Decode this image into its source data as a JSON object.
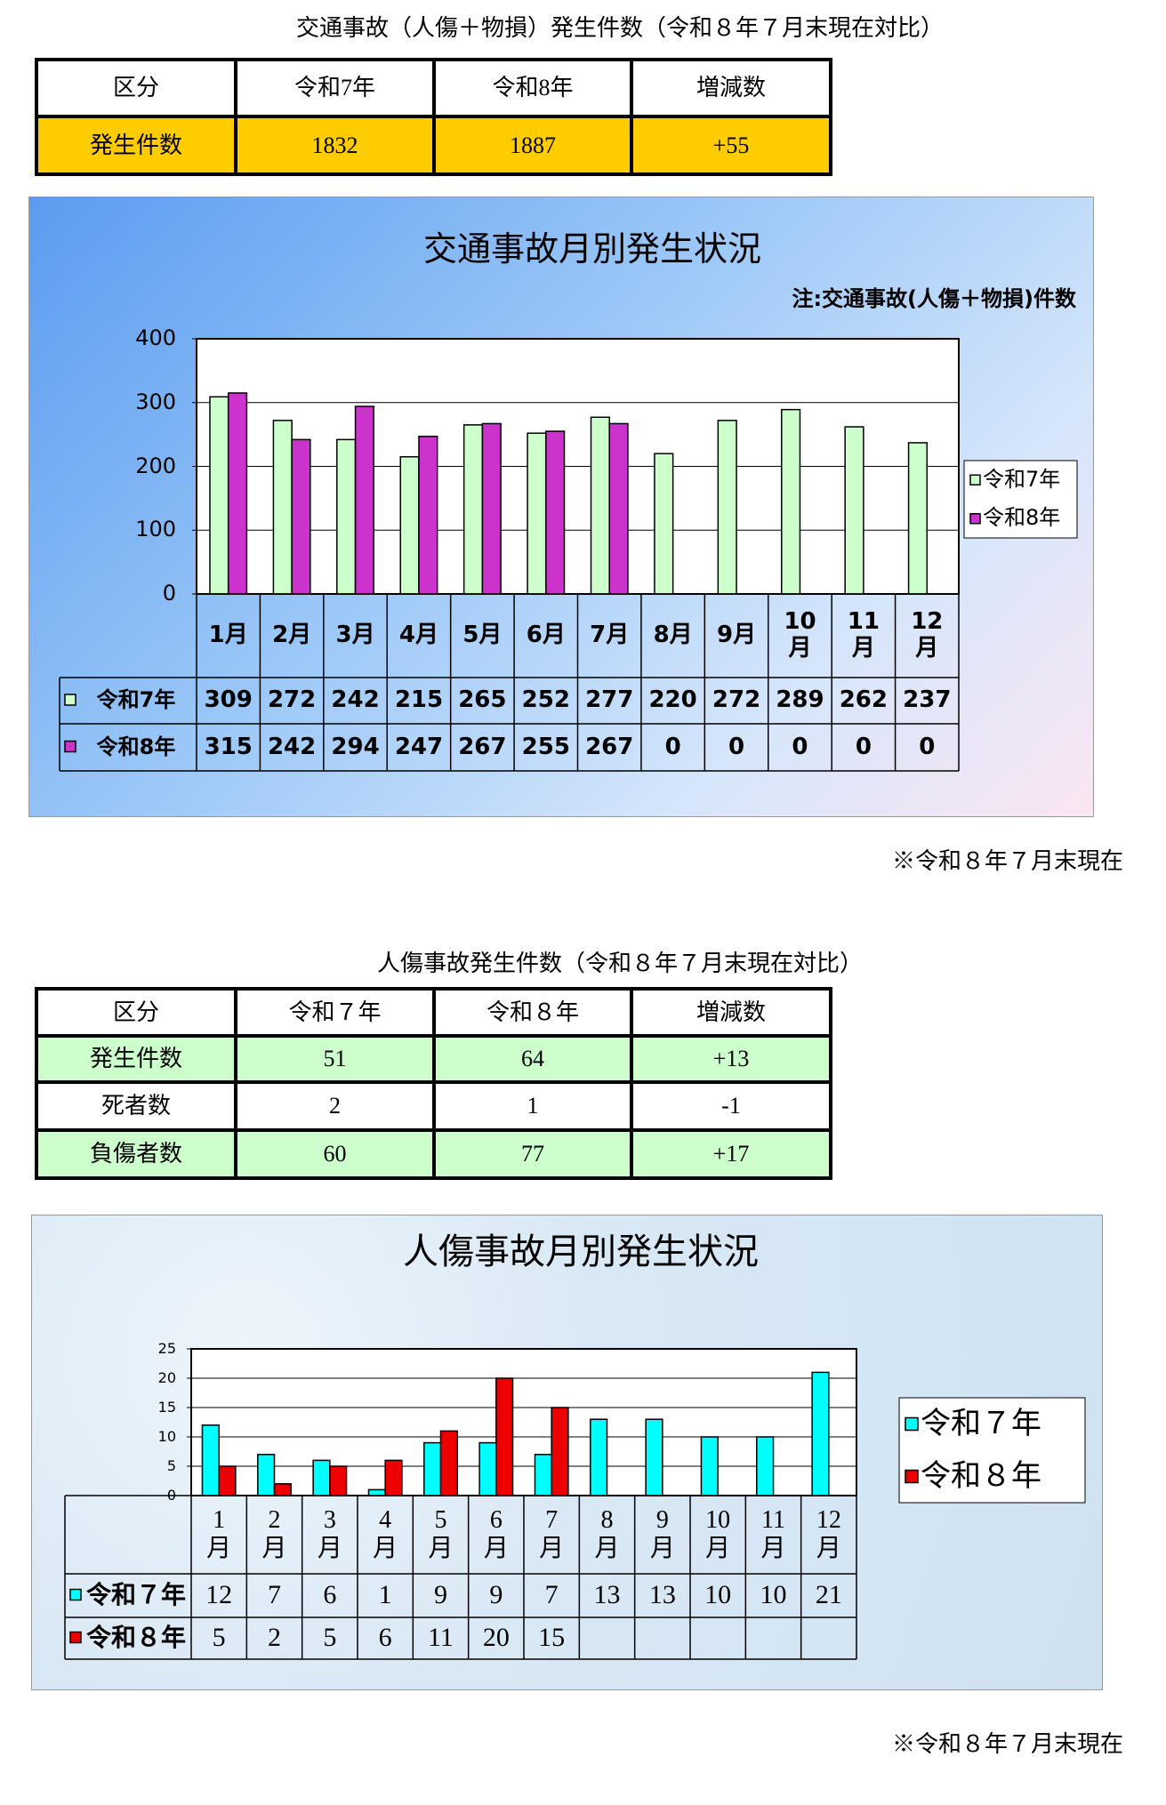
{
  "tables": [
    {
      "title": "交通事故（人傷＋物損）発生件数（令和８年７月末現在対比）",
      "header": [
        "区分",
        "令和7年",
        "令和8年",
        "増減数"
      ],
      "rows": [
        [
          "発生件数",
          1832,
          1887,
          "+55"
        ]
      ]
    },
    {
      "title": "人傷事故発生件数（令和８年７月末現在対比）",
      "header": [
        "区分",
        "令和７年",
        "令和８年",
        "増減数"
      ],
      "rows": [
        [
          "発生件数",
          51,
          64,
          "+13"
        ],
        [
          "死者数",
          2,
          1,
          "-1"
        ],
        [
          "負傷者数",
          60,
          77,
          "+17"
        ]
      ]
    }
  ],
  "chart_data": [
    {
      "type": "bar",
      "title": "交通事故月別発生状況",
      "subtitle": "注:交通事故(人傷＋物損)件数",
      "categories": [
        "1月",
        "2月",
        "3月",
        "4月",
        "5月",
        "6月",
        "7月",
        "8月",
        "9月",
        "10\n月",
        "11\n月",
        "12\n月"
      ],
      "series": [
        {
          "name": "令和7年",
          "color": "#ccffcc",
          "values": [
            309,
            272,
            242,
            215,
            265,
            252,
            277,
            220,
            272,
            289,
            262,
            237
          ]
        },
        {
          "name": "令和8年",
          "color": "#cc33cc",
          "values": [
            315,
            242,
            294,
            247,
            267,
            255,
            267,
            0,
            0,
            0,
            0,
            0
          ]
        }
      ],
      "ylim": [
        0,
        400
      ],
      "yticks": [
        0,
        100,
        200,
        300,
        400
      ],
      "grid": true,
      "legend": "right",
      "note": "※令和８年７月末現在"
    },
    {
      "type": "bar",
      "title": "人傷事故月別発生状況",
      "categories": [
        "1\n月",
        "2\n月",
        "3\n月",
        "4\n月",
        "5\n月",
        "6\n月",
        "7\n月",
        "8\n月",
        "9\n月",
        "10\n月",
        "11\n月",
        "12\n月"
      ],
      "series": [
        {
          "name": "令和７年",
          "color": "#00ffff",
          "values": [
            12,
            7,
            6,
            1,
            9,
            9,
            7,
            13,
            13,
            10,
            10,
            21
          ]
        },
        {
          "name": "令和８年",
          "color": "#ee0000",
          "values": [
            5,
            2,
            5,
            6,
            11,
            20,
            15,
            null,
            null,
            null,
            null,
            null
          ]
        }
      ],
      "ylim": [
        0,
        25
      ],
      "yticks": [
        0,
        5,
        10,
        15,
        20,
        25
      ],
      "grid": true,
      "legend": "right",
      "note": "※令和８年７月末現在"
    }
  ]
}
